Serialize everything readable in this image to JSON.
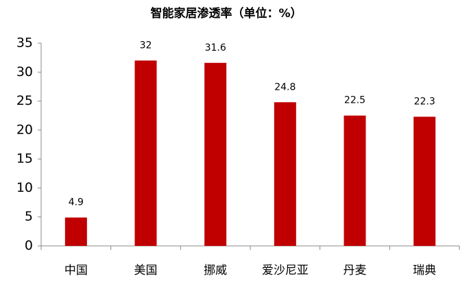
{
  "chart_data": {
    "type": "bar",
    "title": "智能家居渗透率（单位：%）",
    "categories": [
      "中国",
      "美国",
      "挪威",
      "爱沙尼亚",
      "丹麦",
      "瑞典"
    ],
    "values": [
      4.9,
      32,
      31.6,
      24.8,
      22.5,
      22.3
    ],
    "color": "#c00000",
    "ylim": [
      0,
      35
    ],
    "yticks": [
      0,
      5,
      10,
      15,
      20,
      25,
      30,
      35
    ],
    "grid": false,
    "data_labels": true
  }
}
